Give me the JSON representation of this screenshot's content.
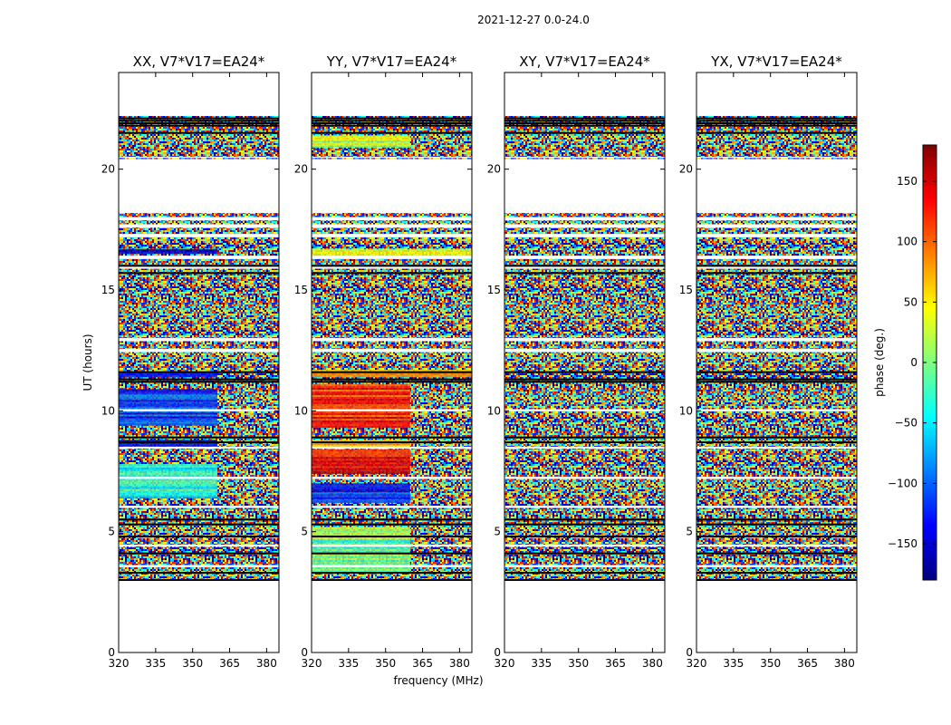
{
  "chart_data": {
    "type": "heatmap",
    "suptitle": "2021-12-27 0.0-24.0",
    "xlabel": "frequency (MHz)",
    "ylabel": "UT (hours)",
    "xlim": [
      320,
      385
    ],
    "ylim": [
      0,
      24
    ],
    "xticks": [
      "320",
      "335",
      "350",
      "365",
      "380"
    ],
    "yticks": [
      "0",
      "5",
      "10",
      "15",
      "20"
    ],
    "colorbar": {
      "label": "phase (deg.)",
      "range": [
        -180,
        180
      ],
      "ticks": [
        "150",
        "100",
        "50",
        "0",
        "−50",
        "−100",
        "−150"
      ],
      "colormap": "jet",
      "colors": [
        "#00007f",
        "#0000ff",
        "#007fff",
        "#00ffff",
        "#7fff7f",
        "#ffff00",
        "#ff7f00",
        "#ff0000",
        "#7f0000"
      ]
    },
    "observed_span_ut": [
      3.0,
      22.2
    ],
    "flagged_rows_ut": [
      3.0,
      3.3,
      4.1,
      4.8,
      5.3,
      5.5,
      8.7,
      8.9,
      11.2,
      11.3,
      11.6,
      15.7,
      16.0,
      21.5,
      21.8,
      21.9,
      22.0,
      22.1
    ],
    "gap_rows_ut": [
      [
        20.5,
        20.5
      ],
      [
        18.2,
        20.4
      ],
      [
        17.9,
        18.0
      ],
      [
        17.6,
        17.7
      ],
      [
        17.2,
        17.3
      ],
      [
        16.3,
        16.4
      ],
      [
        15.9,
        15.95
      ],
      [
        12.9,
        13.0
      ],
      [
        12.45,
        12.55
      ],
      [
        10.0,
        10.05
      ],
      [
        8.45,
        8.5
      ],
      [
        7.2,
        7.25
      ],
      [
        6.0,
        6.05
      ],
      [
        4.4,
        4.45
      ],
      [
        3.55,
        3.6
      ]
    ],
    "panels": [
      {
        "title": "XX, V7*V17=EA24*",
        "coherent_regions": [
          {
            "ut": [
              16.5,
              16.7
            ],
            "freq": [
              320,
              360
            ],
            "phase": -150
          },
          {
            "ut": [
              11.4,
              11.6
            ],
            "freq": [
              320,
              360
            ],
            "phase": -140
          },
          {
            "ut": [
              9.4,
              10.9
            ],
            "freq": [
              320,
              360
            ],
            "phase": -120
          },
          {
            "ut": [
              8.5,
              8.8
            ],
            "freq": [
              320,
              360
            ],
            "phase": -160
          },
          {
            "ut": [
              6.4,
              7.8
            ],
            "freq": [
              320,
              360
            ],
            "phase": -40
          }
        ]
      },
      {
        "title": "YY, V7*V17=EA24*",
        "coherent_regions": [
          {
            "ut": [
              20.9,
              21.4
            ],
            "freq": [
              320,
              360
            ],
            "phase": 20
          },
          {
            "ut": [
              16.4,
              16.7
            ],
            "freq": [
              320,
              385
            ],
            "phase": 40
          },
          {
            "ut": [
              11.4,
              11.7
            ],
            "freq": [
              320,
              385
            ],
            "phase": 90
          },
          {
            "ut": [
              9.3,
              11.1
            ],
            "freq": [
              320,
              360
            ],
            "phase": 120
          },
          {
            "ut": [
              8.5,
              8.8
            ],
            "freq": [
              320,
              360
            ],
            "phase": 60
          },
          {
            "ut": [
              7.4,
              8.4
            ],
            "freq": [
              320,
              360
            ],
            "phase": 140
          },
          {
            "ut": [
              6.2,
              7.0
            ],
            "freq": [
              320,
              360
            ],
            "phase": -130
          },
          {
            "ut": [
              3.3,
              5.2
            ],
            "freq": [
              320,
              360
            ],
            "phase": 0
          }
        ]
      },
      {
        "title": "XY, V7*V17=EA24*",
        "coherent_regions": []
      },
      {
        "title": "YX, V7*V17=EA24*",
        "coherent_regions": []
      }
    ]
  }
}
